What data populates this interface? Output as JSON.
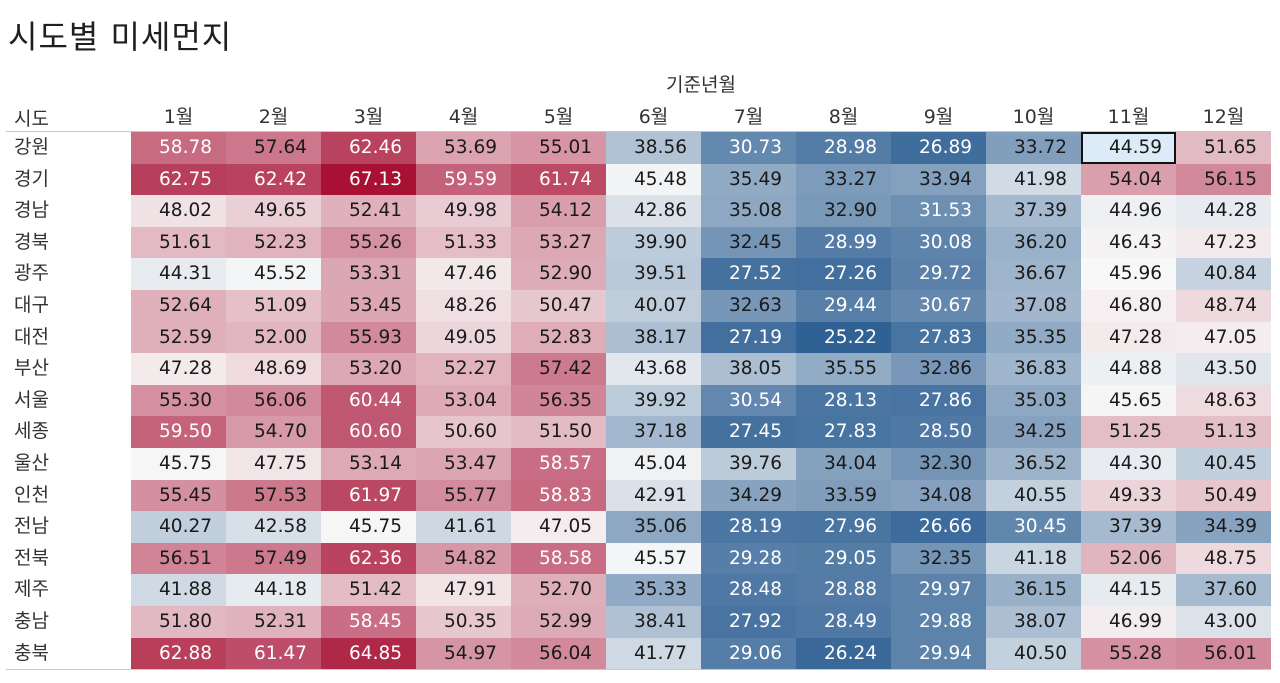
{
  "title": "시도별 미세먼지",
  "chart_data": {
    "type": "heatmap",
    "column_dimension": "기준년월",
    "row_dimension": "시도",
    "columns": [
      "1월",
      "2월",
      "3월",
      "4월",
      "5월",
      "6월",
      "7월",
      "8월",
      "9월",
      "10월",
      "11월",
      "12월"
    ],
    "rows": [
      "강원",
      "경기",
      "경남",
      "경북",
      "광주",
      "대구",
      "대전",
      "부산",
      "서울",
      "세종",
      "울산",
      "인천",
      "전남",
      "전북",
      "제주",
      "충남",
      "충북"
    ],
    "values": [
      [
        "58.78",
        "57.64",
        "62.46",
        "53.69",
        "55.01",
        "38.56",
        "30.73",
        "28.98",
        "26.89",
        "33.72",
        "44.59",
        "51.65"
      ],
      [
        "62.75",
        "62.42",
        "67.13",
        "59.59",
        "61.74",
        "45.48",
        "35.49",
        "33.27",
        "33.94",
        "41.98",
        "54.04",
        "56.15"
      ],
      [
        "48.02",
        "49.65",
        "52.41",
        "49.98",
        "54.12",
        "42.86",
        "35.08",
        "32.90",
        "31.53",
        "37.39",
        "44.96",
        "44.28"
      ],
      [
        "51.61",
        "52.23",
        "55.26",
        "51.33",
        "53.27",
        "39.90",
        "32.45",
        "28.99",
        "30.08",
        "36.20",
        "46.43",
        "47.23"
      ],
      [
        "44.31",
        "45.52",
        "53.31",
        "47.46",
        "52.90",
        "39.51",
        "27.52",
        "27.26",
        "29.72",
        "36.67",
        "45.96",
        "40.84"
      ],
      [
        "52.64",
        "51.09",
        "53.45",
        "48.26",
        "50.47",
        "40.07",
        "32.63",
        "29.44",
        "30.67",
        "37.08",
        "46.80",
        "48.74"
      ],
      [
        "52.59",
        "52.00",
        "55.93",
        "49.05",
        "52.83",
        "38.17",
        "27.19",
        "25.22",
        "27.83",
        "35.35",
        "47.28",
        "47.05"
      ],
      [
        "47.28",
        "48.69",
        "53.20",
        "52.27",
        "57.42",
        "43.68",
        "38.05",
        "35.55",
        "32.86",
        "36.83",
        "44.88",
        "43.50"
      ],
      [
        "55.30",
        "56.06",
        "60.44",
        "53.04",
        "56.35",
        "39.92",
        "30.54",
        "28.13",
        "27.86",
        "35.03",
        "45.65",
        "48.63"
      ],
      [
        "59.50",
        "54.70",
        "60.60",
        "50.60",
        "51.50",
        "37.18",
        "27.45",
        "27.83",
        "28.50",
        "34.25",
        "51.25",
        "51.13"
      ],
      [
        "45.75",
        "47.75",
        "53.14",
        "53.47",
        "58.57",
        "45.04",
        "39.76",
        "34.04",
        "32.30",
        "36.52",
        "44.30",
        "40.45"
      ],
      [
        "55.45",
        "57.53",
        "61.97",
        "55.77",
        "58.83",
        "42.91",
        "34.29",
        "33.59",
        "34.08",
        "40.55",
        "49.33",
        "50.49"
      ],
      [
        "40.27",
        "42.58",
        "45.75",
        "41.61",
        "47.05",
        "35.06",
        "28.19",
        "27.96",
        "26.66",
        "30.45",
        "37.39",
        "34.39"
      ],
      [
        "56.51",
        "57.49",
        "62.36",
        "54.82",
        "58.58",
        "45.57",
        "29.28",
        "29.05",
        "32.35",
        "41.18",
        "52.06",
        "48.75"
      ],
      [
        "41.88",
        "44.18",
        "51.42",
        "47.91",
        "52.70",
        "35.33",
        "28.48",
        "28.88",
        "29.97",
        "36.15",
        "44.15",
        "37.60"
      ],
      [
        "51.80",
        "52.31",
        "58.45",
        "50.35",
        "52.99",
        "38.41",
        "27.92",
        "28.49",
        "29.88",
        "38.07",
        "46.99",
        "43.00"
      ],
      [
        "62.88",
        "61.47",
        "64.85",
        "54.97",
        "56.04",
        "41.77",
        "29.06",
        "26.24",
        "29.94",
        "40.50",
        "55.28",
        "56.01"
      ]
    ],
    "color_scale": {
      "type": "diverging",
      "low_color": "#2d5f93",
      "mid_color": "#f8f8f8",
      "high_color": "#a81034",
      "domain": [
        25,
        46,
        67
      ]
    },
    "selected_cell": {
      "row": "강원",
      "column": "11월"
    }
  }
}
